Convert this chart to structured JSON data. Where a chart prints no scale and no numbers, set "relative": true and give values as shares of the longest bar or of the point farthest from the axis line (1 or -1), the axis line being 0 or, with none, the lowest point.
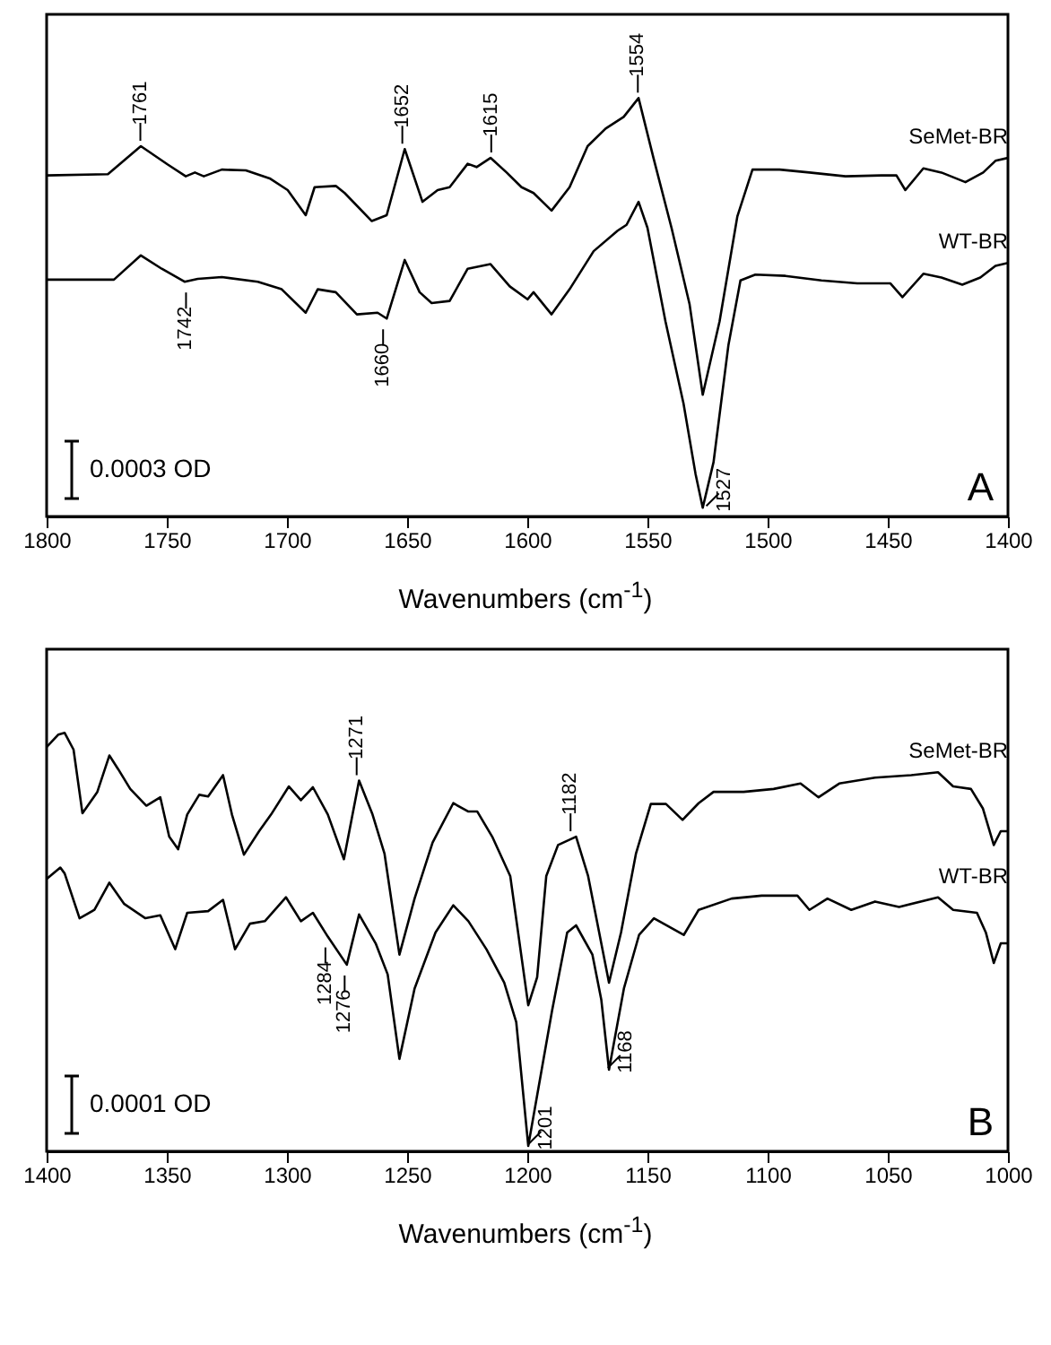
{
  "chart_data": [
    {
      "type": "line",
      "relative": true,
      "xlabel": "Wavenumbers (cm$^{-1}$)",
      "xlim": [
        1800,
        1400
      ],
      "xticks": [
        1800,
        1750,
        1700,
        1650,
        1600,
        1550,
        1500,
        1450,
        1400
      ],
      "series": [
        {
          "name": "SeMet-BR",
          "color": "#000000",
          "x": [
            1800,
            1774.5,
            1760.8,
            1749.6,
            1742.1,
            1738.3,
            1734.6,
            1727.1,
            1717.1,
            1707.2,
            1699.7,
            1692.2,
            1688.5,
            1679.7,
            1676,
            1664.7,
            1658.5,
            1651,
            1643.6,
            1637.3,
            1632.3,
            1624.8,
            1621.1,
            1615.3,
            1608.6,
            1602.4,
            1597.4,
            1589.9,
            1582.4,
            1574.9,
            1567.4,
            1559.9,
            1553.7,
            1547.5,
            1540,
            1532.5,
            1527,
            1520,
            1512.6,
            1506.3,
            1495,
            1482.6,
            1467.6,
            1452.7,
            1446.4,
            1442.7,
            1435.2,
            1427.7,
            1417.7,
            1410.3,
            1405.2,
            1400
          ],
          "values": [
            0.815,
            0.818,
            0.885,
            0.841,
            0.813,
            0.822,
            0.813,
            0.829,
            0.827,
            0.808,
            0.78,
            0.72,
            0.787,
            0.79,
            0.773,
            0.706,
            0.72,
            0.878,
            0.752,
            0.78,
            0.787,
            0.843,
            0.835,
            0.857,
            0.822,
            0.787,
            0.773,
            0.731,
            0.787,
            0.885,
            0.927,
            0.955,
            1.0,
            0.857,
            0.69,
            0.508,
            0.291,
            0.466,
            0.717,
            0.829,
            0.829,
            0.822,
            0.813,
            0.815,
            0.815,
            0.78,
            0.832,
            0.822,
            0.799,
            0.822,
            0.85,
            0.857
          ]
        },
        {
          "name": "WT-BR",
          "color": "#000000",
          "x": [
            1800,
            1772,
            1760.8,
            1752.1,
            1742.6,
            1737.1,
            1727.1,
            1712.1,
            1702.2,
            1692.2,
            1687.2,
            1679.7,
            1670.9,
            1662.3,
            1658.5,
            1651,
            1644.8,
            1639.8,
            1632.3,
            1624.8,
            1615.3,
            1607.3,
            1599.9,
            1597.4,
            1589.9,
            1582.4,
            1572.4,
            1562.4,
            1558.7,
            1553.7,
            1550,
            1542.5,
            1535,
            1530,
            1527,
            1522.5,
            1516.3,
            1511.3,
            1505.1,
            1492.6,
            1477.6,
            1462.7,
            1448.9,
            1443.9,
            1435.2,
            1427.7,
            1419,
            1411.5,
            1405.2,
            1400
          ],
          "values": [
            0.566,
            0.566,
            0.624,
            0.592,
            0.561,
            0.568,
            0.572,
            0.561,
            0.543,
            0.487,
            0.543,
            0.536,
            0.483,
            0.487,
            0.473,
            0.613,
            0.536,
            0.51,
            0.515,
            0.592,
            0.603,
            0.55,
            0.519,
            0.536,
            0.483,
            0.543,
            0.634,
            0.683,
            0.697,
            0.752,
            0.69,
            0.466,
            0.27,
            0.102,
            0.021,
            0.13,
            0.41,
            0.564,
            0.578,
            0.575,
            0.564,
            0.557,
            0.557,
            0.524,
            0.58,
            0.571,
            0.554,
            0.571,
            0.599,
            0.606
          ]
        }
      ],
      "annotations": [
        "0.0003 OD",
        "A",
        {
          "text": "1761",
          "x": 1761,
          "y": 0.885
        },
        {
          "text": "1652",
          "x": 1652,
          "y": 0.878
        },
        {
          "text": "1615",
          "x": 1615,
          "y": 0.857
        },
        {
          "text": "1554",
          "x": 1554,
          "y": 1.0
        },
        {
          "text": "1742",
          "x": 1742,
          "y": 0.561
        },
        {
          "text": "1660",
          "x": 1660,
          "y": 0.473
        },
        {
          "text": "1527",
          "x": 1527,
          "y": 0.021
        }
      ]
    },
    {
      "type": "line",
      "relative": true,
      "xlabel": "Wavenumbers (cm$^{-1}$)",
      "xlim": [
        1400,
        1000
      ],
      "xticks": [
        1400,
        1350,
        1300,
        1250,
        1200,
        1150,
        1100,
        1050,
        1000
      ],
      "series": [
        {
          "name": "SeMet-BR",
          "color": "#000000",
          "x": [
            1400,
            1395.1,
            1392.5,
            1388.8,
            1385.1,
            1378.9,
            1373.9,
            1370.2,
            1365.2,
            1358.5,
            1352.7,
            1349,
            1345.3,
            1341.5,
            1336.5,
            1332.8,
            1326.6,
            1322.9,
            1317.9,
            1311.6,
            1306.6,
            1299.2,
            1294.2,
            1289.2,
            1283,
            1276.3,
            1270,
            1264.4,
            1259.4,
            1253.2,
            1246.9,
            1239.4,
            1230.8,
            1224.5,
            1220.8,
            1214.6,
            1207.1,
            1199.6,
            1195.9,
            1192.1,
            1187.2,
            1179.7,
            1174.7,
            1166,
            1161,
            1154.8,
            1148.6,
            1142.3,
            1135.4,
            1128.7,
            1122.5,
            1110,
            1097.5,
            1086.3,
            1078.8,
            1070.2,
            1055.3,
            1040.3,
            1029.1,
            1022.8,
            1015.4,
            1010.4,
            1005.9,
            1003,
            1000
          ],
          "values": [
            0.966,
            0.996,
            1.0,
            0.96,
            0.808,
            0.859,
            0.946,
            0.913,
            0.866,
            0.826,
            0.846,
            0.752,
            0.722,
            0.805,
            0.852,
            0.848,
            0.899,
            0.805,
            0.709,
            0.765,
            0.805,
            0.872,
            0.839,
            0.87,
            0.805,
            0.698,
            0.886,
            0.805,
            0.711,
            0.47,
            0.604,
            0.738,
            0.832,
            0.812,
            0.812,
            0.752,
            0.658,
            0.349,
            0.416,
            0.658,
            0.732,
            0.752,
            0.658,
            0.403,
            0.523,
            0.711,
            0.83,
            0.83,
            0.792,
            0.832,
            0.859,
            0.859,
            0.866,
            0.879,
            0.846,
            0.879,
            0.893,
            0.899,
            0.906,
            0.872,
            0.866,
            0.819,
            0.732,
            0.765,
            0.765
          ]
        },
        {
          "name": "WT-BR",
          "color": "#000000",
          "x": [
            1400,
            1394.3,
            1392.5,
            1386.3,
            1380.1,
            1373.9,
            1367.7,
            1358.9,
            1352.7,
            1346.5,
            1341.5,
            1332.8,
            1326.6,
            1321.6,
            1315.4,
            1309.2,
            1300.4,
            1294.2,
            1289.2,
            1283,
            1275.1,
            1270,
            1263.1,
            1258.1,
            1253.2,
            1246.9,
            1238.2,
            1230.8,
            1224.5,
            1217,
            1209.6,
            1204.6,
            1199.6,
            1189.7,
            1183.4,
            1179.7,
            1172.9,
            1169.2,
            1166,
            1159.8,
            1153.5,
            1147.3,
            1134.9,
            1128.7,
            1115,
            1102.5,
            1087.6,
            1082.6,
            1075.1,
            1065.2,
            1055.3,
            1045.3,
            1029.1,
            1022.8,
            1012.9,
            1009.2,
            1005.9,
            1003,
            1000
          ],
          "values": [
            0.651,
            0.678,
            0.664,
            0.557,
            0.577,
            0.642,
            0.591,
            0.557,
            0.564,
            0.483,
            0.57,
            0.574,
            0.601,
            0.483,
            0.544,
            0.55,
            0.607,
            0.55,
            0.57,
            0.513,
            0.446,
            0.566,
            0.497,
            0.423,
            0.221,
            0.389,
            0.523,
            0.588,
            0.55,
            0.483,
            0.403,
            0.309,
            0.013,
            0.336,
            0.523,
            0.54,
            0.47,
            0.362,
            0.195,
            0.389,
            0.517,
            0.557,
            0.517,
            0.577,
            0.604,
            0.611,
            0.611,
            0.577,
            0.604,
            0.577,
            0.597,
            0.584,
            0.607,
            0.577,
            0.57,
            0.523,
            0.45,
            0.497,
            0.497
          ]
        }
      ],
      "annotations": [
        "0.0001 OD",
        "B",
        {
          "text": "1271",
          "x": 1271,
          "y": 0.886
        },
        {
          "text": "1182",
          "x": 1182,
          "y": 0.752
        },
        {
          "text": "1284",
          "x": 1284,
          "y": 0.513
        },
        {
          "text": "1276",
          "x": 1276,
          "y": 0.446
        },
        {
          "text": "1201",
          "x": 1201,
          "y": 0.013
        },
        {
          "text": "1168",
          "x": 1168,
          "y": 0.195
        }
      ]
    }
  ]
}
